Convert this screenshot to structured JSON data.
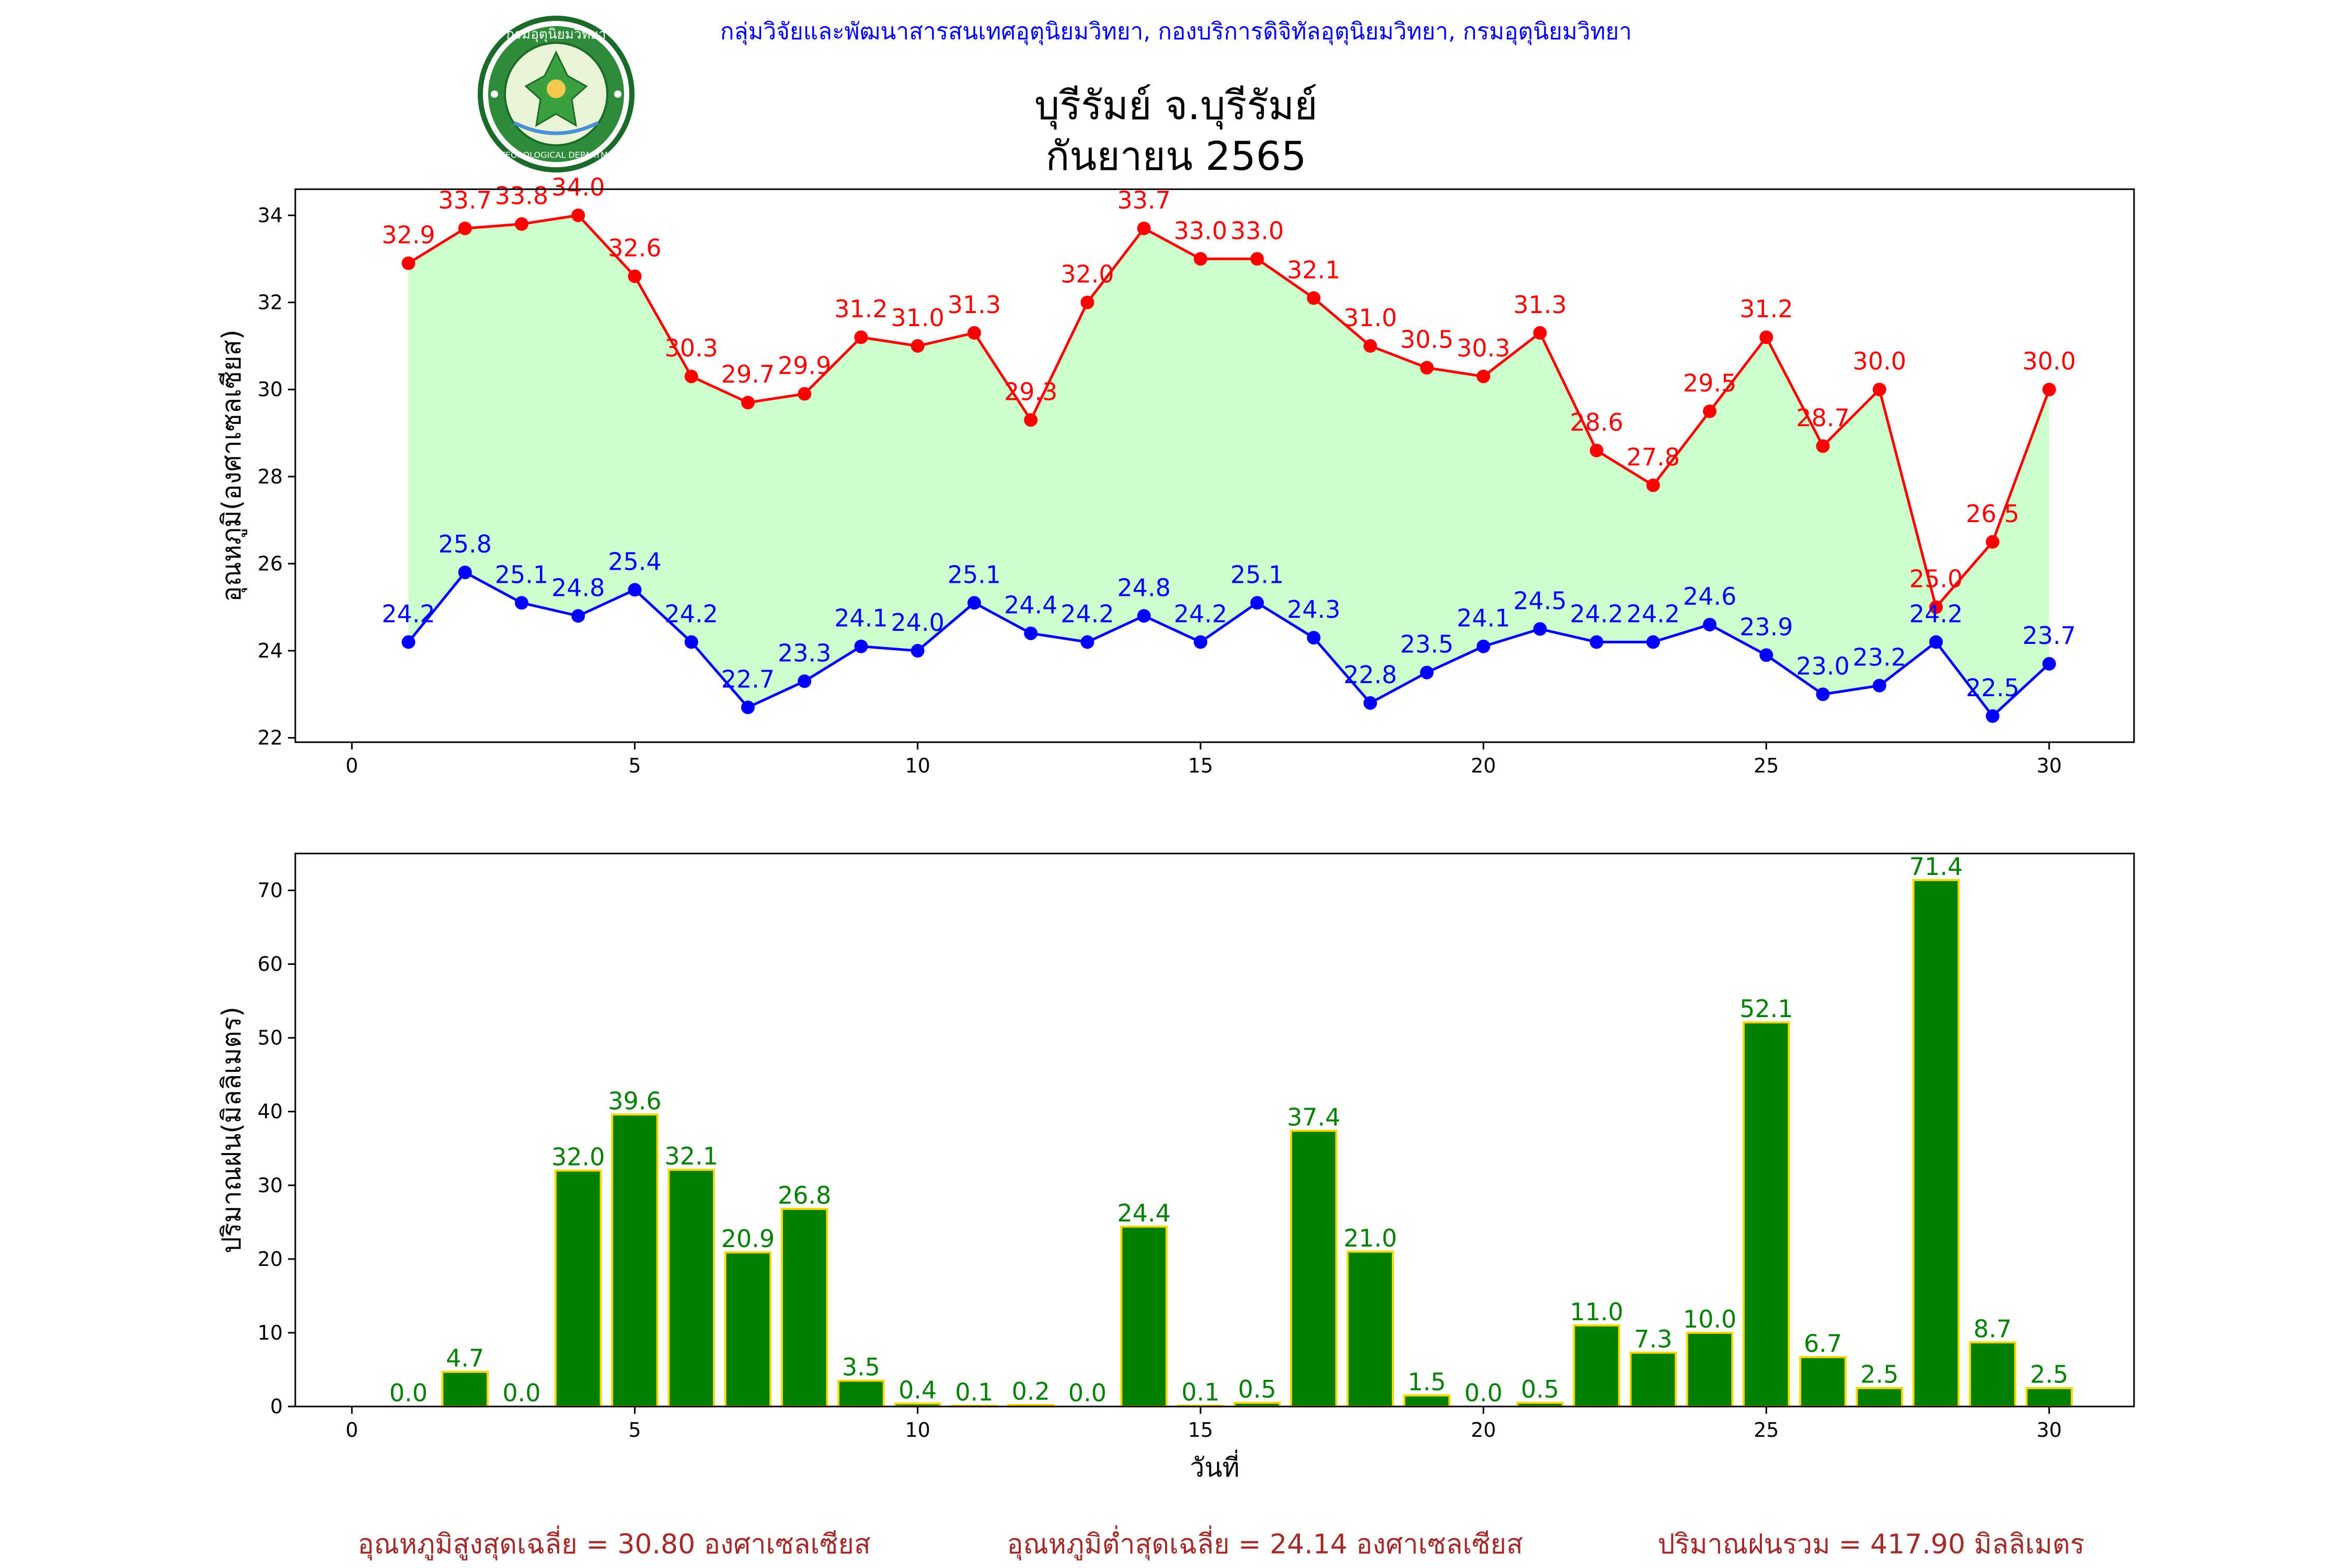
{
  "header": {
    "org_line": "กลุ่มวิจัยและพัฒนาสารสนเทศอุตุนิยมวิทยา, กองบริการดิจิทัลอุตุนิยมวิทยา, กรมอุตุนิยมวิทยา",
    "station": "บุรีรัมย์ จ.บุรีรัมย์",
    "period": "กันยายน 2565",
    "logo": {
      "icon": "meteorological-department-seal",
      "top_text": "กรมอุตุนิยมวิทยา",
      "bottom_text": "METEOROLOGICAL DEPARTMENT"
    }
  },
  "colors": {
    "max": "#ff0000",
    "min": "#0000ff",
    "fill": "#ccffcc",
    "bar": "#008000",
    "bar_edge": "#ffd700",
    "bar_label": "#008000",
    "summary": "#a52a2a",
    "header": "#0000ff"
  },
  "chart_data": [
    {
      "type": "line",
      "ylabel": "อุณหภูมิ(องศาเซลเซียส)",
      "xlabel": "",
      "xlim": [
        -1,
        31.5
      ],
      "ylim": [
        21.9,
        34.6
      ],
      "xticks": [
        0,
        5,
        10,
        15,
        20,
        25,
        30
      ],
      "yticks": [
        22,
        24,
        26,
        28,
        30,
        32,
        34
      ],
      "x": [
        1,
        2,
        3,
        4,
        5,
        6,
        7,
        8,
        9,
        10,
        11,
        12,
        13,
        14,
        15,
        16,
        17,
        18,
        19,
        20,
        21,
        22,
        23,
        24,
        25,
        26,
        27,
        28,
        29,
        30
      ],
      "series": [
        {
          "key": "max",
          "values": [
            32.9,
            33.7,
            33.8,
            34.0,
            32.6,
            30.3,
            29.7,
            29.9,
            31.2,
            31.0,
            31.3,
            29.3,
            32.0,
            33.7,
            33.0,
            33.0,
            32.1,
            31.0,
            30.5,
            30.3,
            31.3,
            28.6,
            27.8,
            29.5,
            31.2,
            28.7,
            30.0,
            25.0,
            26.5,
            30.0
          ]
        },
        {
          "key": "min",
          "values": [
            24.2,
            25.8,
            25.1,
            24.8,
            25.4,
            24.2,
            22.7,
            23.3,
            24.1,
            24.0,
            25.1,
            24.4,
            24.2,
            24.8,
            24.2,
            25.1,
            24.3,
            22.8,
            23.5,
            24.1,
            24.5,
            24.2,
            24.2,
            24.6,
            23.9,
            23.0,
            23.2,
            24.2,
            22.5,
            23.7
          ]
        }
      ],
      "grid": false
    },
    {
      "type": "bar",
      "ylabel": "ปริมาณฝน(มิลลิเมตร)",
      "xlabel": "วันที่",
      "xlim": [
        -1,
        31.5
      ],
      "ylim": [
        0,
        75
      ],
      "xticks": [
        0,
        5,
        10,
        15,
        20,
        25,
        30
      ],
      "yticks": [
        0,
        10,
        20,
        30,
        40,
        50,
        60,
        70
      ],
      "x": [
        1,
        2,
        3,
        4,
        5,
        6,
        7,
        8,
        9,
        10,
        11,
        12,
        13,
        14,
        15,
        16,
        17,
        18,
        19,
        20,
        21,
        22,
        23,
        24,
        25,
        26,
        27,
        28,
        29,
        30
      ],
      "values": [
        0.0,
        4.7,
        0.0,
        32.0,
        39.6,
        32.1,
        20.9,
        26.8,
        3.5,
        0.4,
        0.1,
        0.2,
        0.0,
        24.4,
        0.1,
        0.5,
        37.4,
        21.0,
        1.5,
        0.0,
        0.5,
        11.0,
        7.3,
        10.0,
        52.1,
        6.7,
        2.5,
        71.4,
        8.7,
        2.5
      ],
      "grid": false
    }
  ],
  "summary": {
    "avg_max": "อุณหภูมิสูงสุดเฉลี่ย = 30.80 องศาเซลเซียส",
    "avg_min": "อุณหภูมิต่ำสุดเฉลี่ย = 24.14 องศาเซลเซียส",
    "total_rain": "ปริมาณฝนรวม = 417.90 มิลลิเมตร"
  }
}
